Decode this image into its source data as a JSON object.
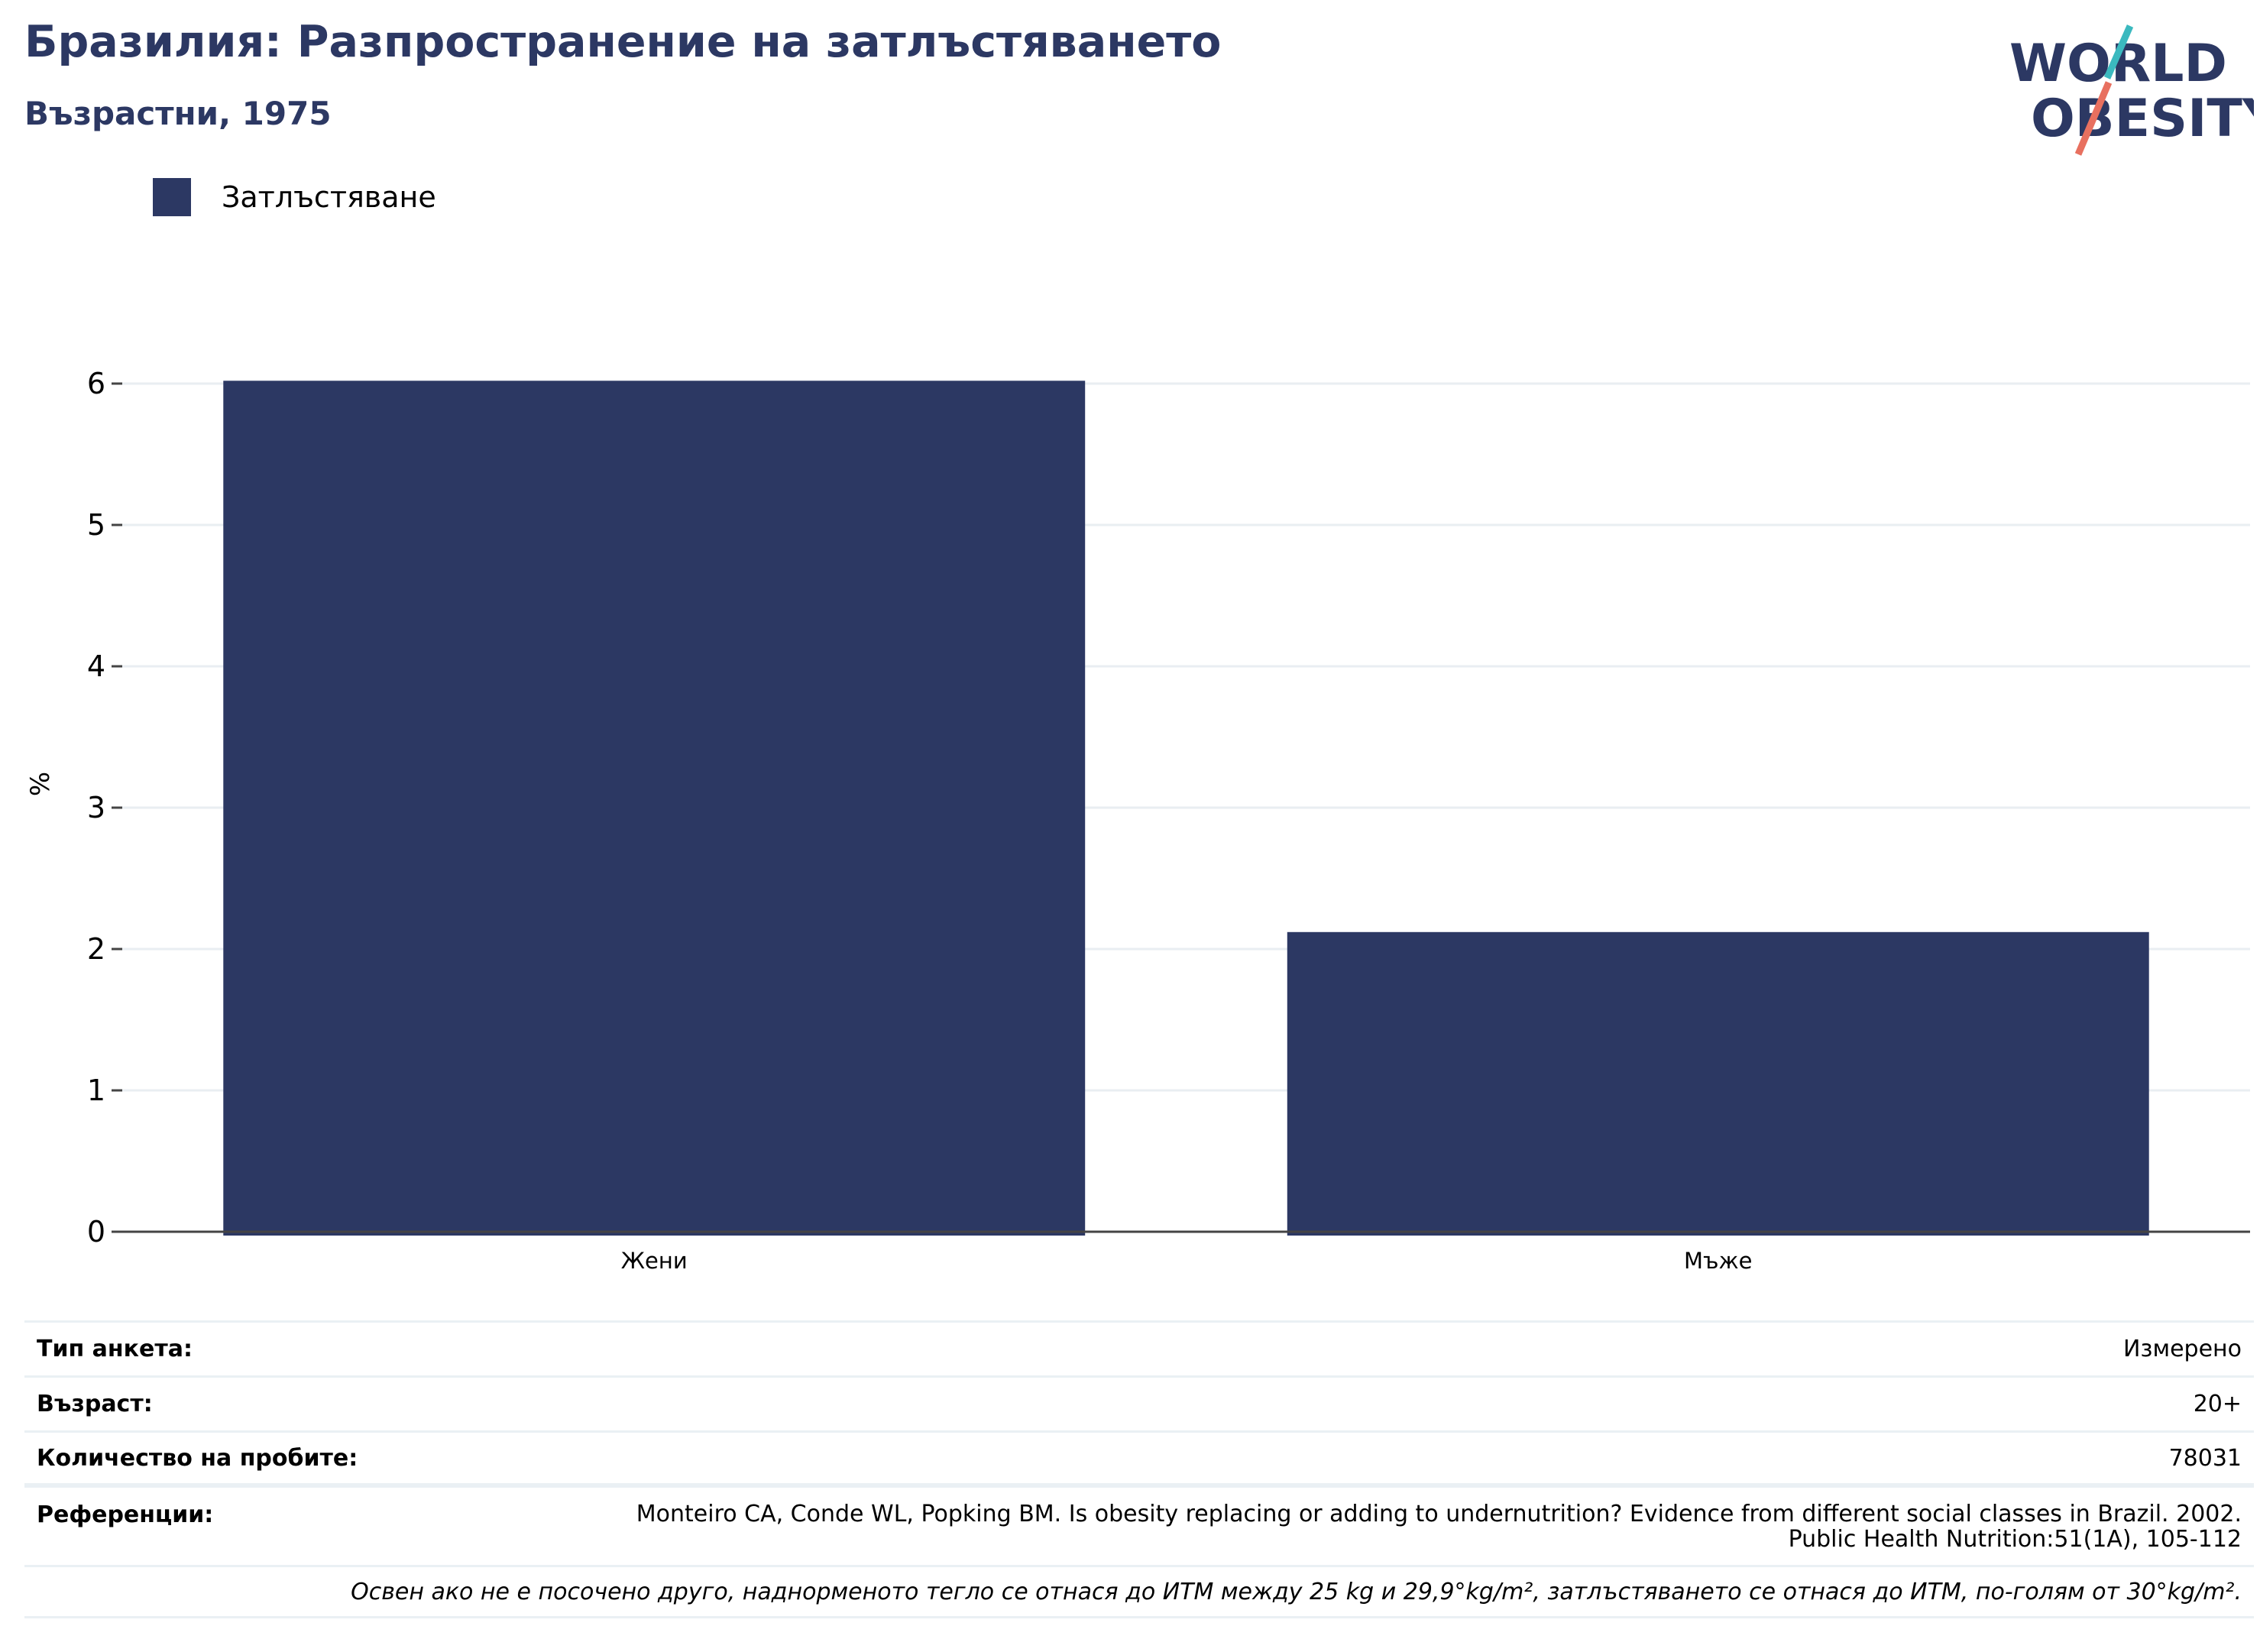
{
  "header": {
    "title": "Бразилия: Разпространение на затлъстяването",
    "subtitle": "Възрастни, 1975"
  },
  "logo": {
    "line1": "WORLD",
    "line2": "OBESITY",
    "colors": {
      "text": "#2c3863",
      "teal": "#3bb9bf",
      "coral": "#e8705f"
    }
  },
  "legend": {
    "label": "Затлъстяване",
    "color": "#2c3863"
  },
  "chart_data": {
    "type": "bar",
    "categories": [
      "Жени",
      "Мъже"
    ],
    "series": [
      {
        "name": "Затлъстяване",
        "values": [
          6.02,
          2.12
        ]
      }
    ],
    "ylabel": "%",
    "xlabel": "",
    "ylim": [
      0,
      6
    ],
    "yticks": [
      0,
      1,
      2,
      3,
      4,
      5,
      6
    ],
    "grid": true,
    "legend_position": "top-left",
    "bar_color": "#2c3863"
  },
  "meta": {
    "rows": [
      {
        "key": "Тип анкета:",
        "value": "Измерено"
      },
      {
        "key": "Възраст:",
        "value": "20+"
      },
      {
        "key": "Количество на пробите:",
        "value": "78031"
      }
    ],
    "reference": {
      "key": "Референции:",
      "line1": "Monteiro CA, Conde WL, Popking BM. Is obesity replacing or adding to undernutrition? Evidence from different social classes in Brazil. 2002.",
      "line2": "Public Health Nutrition:51(1A), 105-112"
    },
    "footnote": "Освен ако не е посочено друго, наднорменото тегло се отнася до ИТМ между 25 kg и 29,9°kg/m², затлъстяването се отнася до ИТМ, по-голям от 30°kg/m²."
  }
}
